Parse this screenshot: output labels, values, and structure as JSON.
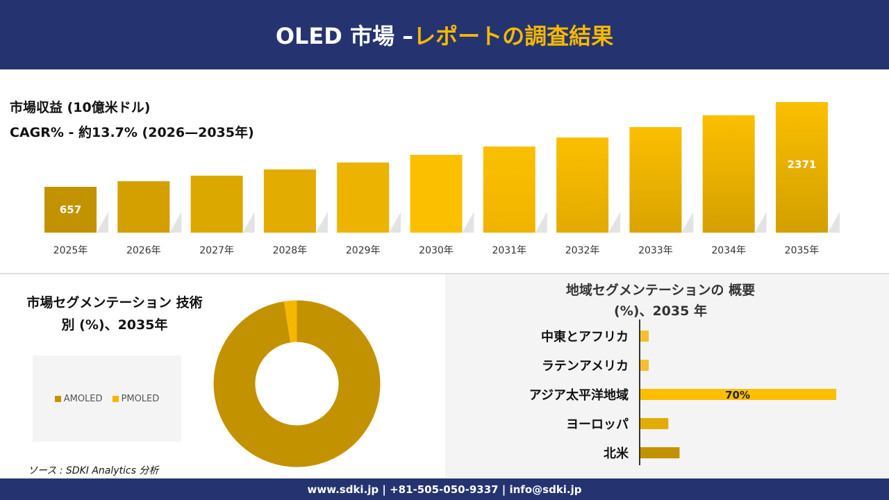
{
  "header": {
    "title_white": "OLED 市場 –",
    "title_yellow": "レポートの調査結果"
  },
  "colors": {
    "navy": "#253470",
    "gold": "#f5b800",
    "dark_gold": "#c39200"
  },
  "chart_data": [
    {
      "type": "bar",
      "title": "市場収益 (10億米ドル)",
      "subtitle": "CAGR% - 約13.7% (2026—2035年)",
      "categories": [
        "2025年",
        "2026年",
        "2027年",
        "2028年",
        "2029年",
        "2030年",
        "2031年",
        "2032年",
        "2033年",
        "2034年",
        "2035年"
      ],
      "values": [
        657,
        770,
        882,
        1008,
        1149,
        1303,
        1472,
        1654,
        1865,
        2104,
        2371
      ],
      "data_labels": {
        "0": "657",
        "10": "2371"
      }
    },
    {
      "type": "pie",
      "title": "市場セグメンテーション 技術別 (%)、2035年",
      "categories": [
        "AMOLED",
        "PMOLED"
      ],
      "values": [
        97.5,
        2.5
      ],
      "colors": [
        "#c39200",
        "#f5b800"
      ]
    },
    {
      "type": "bar",
      "orientation": "horizontal",
      "title": "地域セグメンテーションの 概要 (%)、2035 年",
      "categories": [
        "中東とアフリカ",
        "ラテンアメリカ",
        "アジア太平洋地域",
        "ヨーロッパ",
        "北米"
      ],
      "values": [
        3,
        3,
        70,
        10,
        14
      ],
      "data_labels": {
        "2": "70%"
      },
      "colors": [
        "#f5c030",
        "#f5c030",
        "#fbbf00",
        "#e2ac00",
        "#c39200"
      ]
    }
  ],
  "source": "ソース : SDKI Analytics 分析",
  "footer": "www.sdki.jp | +81-505-050-9337 | info@sdki.jp"
}
